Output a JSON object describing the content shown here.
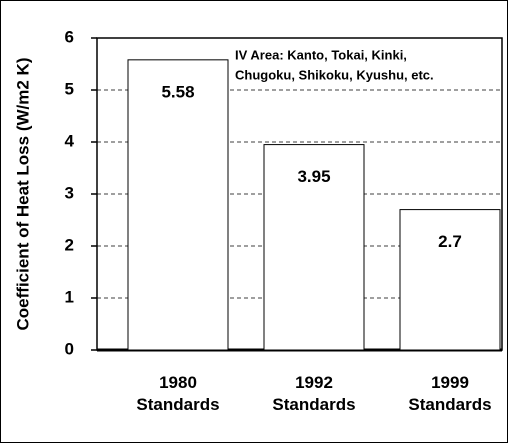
{
  "chart_data": {
    "type": "bar",
    "y_label": "Coefficient of Heat Loss (W/m2 K)",
    "annotations": [
      "IV Area: Kanto, Tokai, Kinki,",
      "Chugoku, Shikoku,  Kyushu, etc."
    ],
    "categories": [
      "1980 Standards",
      "1992 Standards",
      "1999 Standards"
    ],
    "values": [
      5.58,
      3.95,
      2.7
    ],
    "color": "#ffffff",
    "ylim": [
      0,
      6
    ],
    "yticks": [
      0,
      1,
      2,
      3,
      4,
      5,
      6
    ],
    "grid": true
  }
}
